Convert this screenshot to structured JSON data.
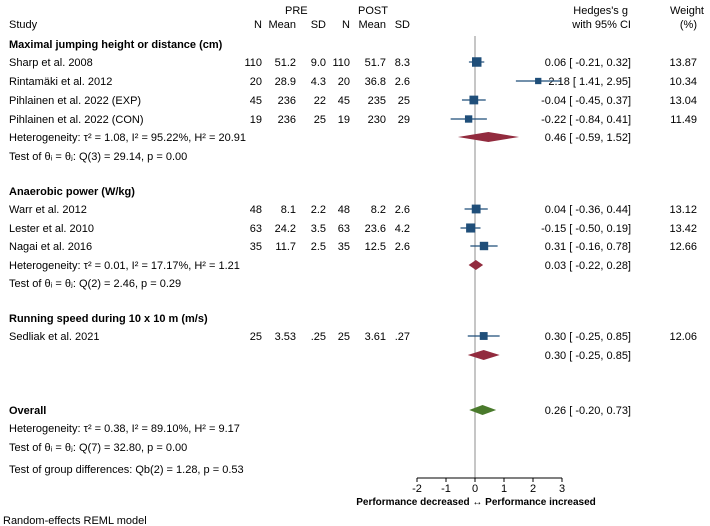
{
  "chart_data": {
    "type": "forest",
    "title": "",
    "headers": {
      "study": "Study",
      "pre": "PRE",
      "post": "POST",
      "n": "N",
      "mean": "Mean",
      "sd": "SD",
      "es_line1": "Hedges's g",
      "es_line2": "with 95% CI",
      "weight_line1": "Weight",
      "weight_line2": "(%)"
    },
    "groups": [
      {
        "title": "Maximal jumping height or distance (cm)",
        "studies": [
          {
            "study": "Sharp et al. 2008",
            "pre_n": "110",
            "pre_mean": "51.2",
            "pre_sd": "9.0",
            "post_n": "110",
            "post_mean": "51.7",
            "post_sd": "8.3",
            "g": 0.06,
            "lo": -0.21,
            "hi": 0.32,
            "ci_text": "0.06 [ -0.21, 0.32]",
            "weight": "13.87"
          },
          {
            "study": "Rintamäki et al. 2012",
            "pre_n": "20",
            "pre_mean": "28.9",
            "pre_sd": "4.3",
            "post_n": "20",
            "post_mean": "36.8",
            "post_sd": "2.6",
            "g": 2.18,
            "lo": 1.41,
            "hi": 2.95,
            "ci_text": "2.18 [  1.41, 2.95]",
            "weight": "10.34"
          },
          {
            "study": "Pihlainen et al. 2022 (EXP)",
            "pre_n": "45",
            "pre_mean": "236",
            "pre_sd": "22",
            "post_n": "45",
            "post_mean": "235",
            "post_sd": "25",
            "g": -0.04,
            "lo": -0.45,
            "hi": 0.37,
            "ci_text": "-0.04 [ -0.45, 0.37]",
            "weight": "13.04"
          },
          {
            "study": "Pihlainen et al. 2022 (CON)",
            "pre_n": "19",
            "pre_mean": "236",
            "pre_sd": "25",
            "post_n": "19",
            "post_mean": "230",
            "post_sd": "29",
            "g": -0.22,
            "lo": -0.84,
            "hi": 0.41,
            "ci_text": "-0.22 [ -0.84, 0.41]",
            "weight": "11.49"
          }
        ],
        "heterogeneity": "Heterogeneity: τ² = 1.08, I² = 95.22%, H² = 20.91",
        "test": "Test of θᵢ = θⱼ: Q(3) = 29.14, p = 0.00",
        "pooled": {
          "g": 0.46,
          "lo": -0.59,
          "hi": 1.52,
          "ci_text": "0.46 [ -0.59, 1.52]"
        }
      },
      {
        "title": "Anaerobic power (W/kg)",
        "studies": [
          {
            "study": "Warr et al. 2012",
            "pre_n": "48",
            "pre_mean": "8.1",
            "pre_sd": "2.2",
            "post_n": "48",
            "post_mean": "8.2",
            "post_sd": "2.6",
            "g": 0.04,
            "lo": -0.36,
            "hi": 0.44,
            "ci_text": "0.04 [ -0.36, 0.44]",
            "weight": "13.12"
          },
          {
            "study": "Lester et al. 2010",
            "pre_n": "63",
            "pre_mean": "24.2",
            "pre_sd": "3.5",
            "post_n": "63",
            "post_mean": "23.6",
            "post_sd": "4.2",
            "g": -0.15,
            "lo": -0.5,
            "hi": 0.19,
            "ci_text": "-0.15 [ -0.50, 0.19]",
            "weight": "13.42"
          },
          {
            "study": "Nagai et al. 2016",
            "pre_n": "35",
            "pre_mean": "11.7",
            "pre_sd": "2.5",
            "post_n": "35",
            "post_mean": "12.5",
            "post_sd": "2.6",
            "g": 0.31,
            "lo": -0.16,
            "hi": 0.78,
            "ci_text": "0.31 [ -0.16, 0.78]",
            "weight": "12.66"
          }
        ],
        "heterogeneity": "Heterogeneity: τ² = 0.01, I² = 17.17%, H² = 1.21",
        "test": "Test of θᵢ = θⱼ: Q(2) = 2.46, p = 0.29",
        "pooled": {
          "g": 0.03,
          "lo": -0.22,
          "hi": 0.28,
          "ci_text": "0.03 [ -0.22, 0.28]"
        }
      },
      {
        "title": "Running speed during 10 x 10 m (m/s)",
        "studies": [
          {
            "study": "Sedliak et al. 2021",
            "pre_n": "25",
            "pre_mean": "3.53",
            "pre_sd": ".25",
            "post_n": "25",
            "post_mean": "3.61",
            "post_sd": ".27",
            "g": 0.3,
            "lo": -0.25,
            "hi": 0.85,
            "ci_text": "0.30 [ -0.25, 0.85]",
            "weight": "12.06"
          }
        ],
        "heterogeneity": "",
        "test": "",
        "pooled": {
          "g": 0.3,
          "lo": -0.25,
          "hi": 0.85,
          "ci_text": "0.30 [ -0.25, 0.85]"
        }
      }
    ],
    "overall": {
      "title": "Overall",
      "g": 0.26,
      "lo": -0.2,
      "hi": 0.73,
      "ci_text": "0.26 [ -0.20, 0.73]",
      "heterogeneity": "Heterogeneity: τ² = 0.38, I² = 89.10%, H² = 9.17",
      "test": "Test of θᵢ = θⱼ: Q(7) = 32.80, p = 0.00",
      "group_test": "Test of group differences: Qb(2) = 1.28, p = 0.53"
    },
    "x_axis": {
      "ticks": [
        -2,
        -1,
        0,
        1,
        2,
        3
      ],
      "range": [
        -2,
        3
      ],
      "label": "Performance decreased ↔ Performance increased"
    },
    "model_note": "Random-effects REML model",
    "colors": {
      "study_marker": "#1f4e79",
      "subgroup_diamond": "#922b3e",
      "overall_diamond": "#4a7a2c",
      "ci_line": "#1f4e79",
      "ref_line": "#8c8c8c"
    }
  }
}
